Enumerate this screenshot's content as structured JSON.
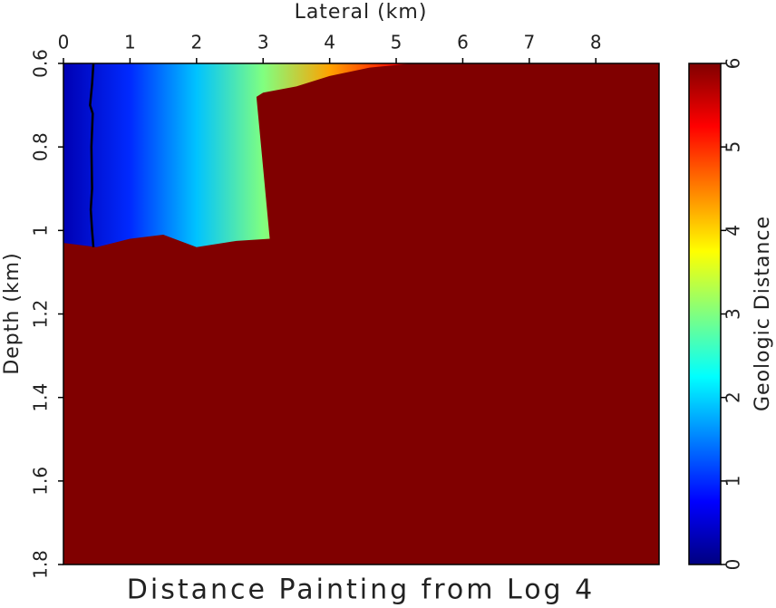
{
  "chart_data": {
    "type": "heatmap",
    "title": "Distance Painting from Log 4",
    "xlabel": "Lateral (km)",
    "ylabel": "Depth (km)",
    "colorbar_label": "Geologic Distance",
    "colormap": "jet",
    "xlim": [
      0,
      8.95
    ],
    "ylim": [
      0.6,
      1.8
    ],
    "y_inverted": true,
    "xticks": [
      0,
      1,
      2,
      3,
      4,
      5,
      6,
      7,
      8
    ],
    "yticks": [
      0.6,
      0.8,
      1,
      1.2,
      1.4,
      1.6,
      1.8
    ],
    "clim": [
      0,
      6
    ],
    "cticks": [
      0,
      1,
      2,
      3,
      4,
      5,
      6
    ],
    "background_value": 6,
    "painted_region": {
      "x": [
        0,
        5.25,
        4.6,
        4.0,
        3.5,
        3.0,
        2.9,
        3.1,
        2.6,
        2.0,
        1.5,
        1.0,
        0.5,
        0
      ],
      "y": [
        0.6,
        0.6,
        0.61,
        0.63,
        0.655,
        0.67,
        0.68,
        1.02,
        1.025,
        1.04,
        1.01,
        1.02,
        1.04,
        1.03
      ]
    },
    "gradient": {
      "x": [
        0,
        1,
        2,
        3,
        4,
        5
      ],
      "values": [
        0.3,
        1,
        1.9,
        3,
        4.3,
        5.2
      ]
    },
    "log": {
      "name": "Log 4",
      "color": "#000000",
      "x": [
        0.45,
        0.43,
        0.4,
        0.44,
        0.42,
        0.43,
        0.41,
        0.43,
        0.45
      ],
      "y": [
        0.6,
        0.65,
        0.7,
        0.72,
        0.8,
        0.9,
        0.95,
        1.0,
        1.04
      ]
    }
  }
}
